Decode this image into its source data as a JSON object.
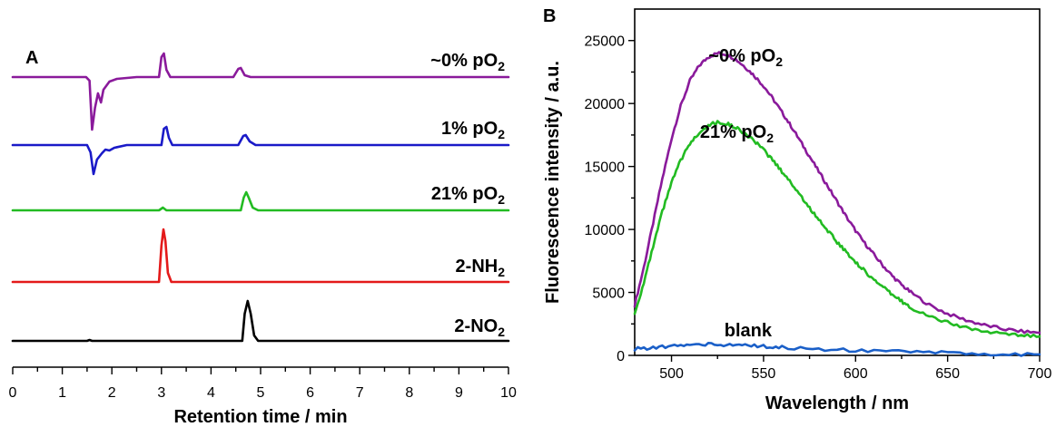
{
  "chart_data": [
    {
      "panel": "A",
      "type": "line",
      "xlabel": "Retention time / min",
      "ylabel": "",
      "xlim": [
        0,
        10
      ],
      "xticks": [
        0,
        1,
        2,
        3,
        4,
        5,
        6,
        7,
        8,
        9,
        10
      ],
      "grid": false,
      "series": [
        {
          "name": "~0% pO2",
          "label_main": "~0% pO",
          "label_sub": "2",
          "color": "#8a1a9b",
          "points": [
            [
              0,
              0
            ],
            [
              1.48,
              0
            ],
            [
              1.55,
              -4
            ],
            [
              1.6,
              -58
            ],
            [
              1.66,
              -34
            ],
            [
              1.72,
              -18
            ],
            [
              1.78,
              -28
            ],
            [
              1.83,
              -14
            ],
            [
              1.95,
              -5
            ],
            [
              2.1,
              -2
            ],
            [
              2.5,
              0
            ],
            [
              2.95,
              0
            ],
            [
              3.0,
              22
            ],
            [
              3.05,
              26
            ],
            [
              3.1,
              8
            ],
            [
              3.18,
              0
            ],
            [
              4.45,
              0
            ],
            [
              4.55,
              9
            ],
            [
              4.6,
              10
            ],
            [
              4.68,
              2
            ],
            [
              4.8,
              0
            ],
            [
              10,
              0
            ]
          ]
        },
        {
          "name": "1% pO2",
          "label_main": "1% pO",
          "label_sub": "2",
          "color": "#1a1ac8",
          "points": [
            [
              0,
              0
            ],
            [
              1.5,
              0
            ],
            [
              1.57,
              -8
            ],
            [
              1.63,
              -32
            ],
            [
              1.7,
              -16
            ],
            [
              1.8,
              -9
            ],
            [
              1.87,
              -5
            ],
            [
              1.95,
              -6
            ],
            [
              2.05,
              -3
            ],
            [
              2.3,
              0
            ],
            [
              3.0,
              0
            ],
            [
              3.05,
              18
            ],
            [
              3.1,
              20
            ],
            [
              3.15,
              8
            ],
            [
              3.22,
              0
            ],
            [
              4.55,
              0
            ],
            [
              4.65,
              10
            ],
            [
              4.7,
              11
            ],
            [
              4.78,
              4
            ],
            [
              4.9,
              0
            ],
            [
              10,
              0
            ]
          ]
        },
        {
          "name": "21% pO2",
          "label_main": "21% pO",
          "label_sub": "2",
          "color": "#22bb22",
          "points": [
            [
              0,
              0
            ],
            [
              2.95,
              0
            ],
            [
              3.03,
              3
            ],
            [
              3.1,
              0
            ],
            [
              4.6,
              0
            ],
            [
              4.66,
              14
            ],
            [
              4.71,
              20
            ],
            [
              4.76,
              14
            ],
            [
              4.84,
              3
            ],
            [
              4.95,
              0
            ],
            [
              10,
              0
            ]
          ]
        },
        {
          "name": "2-NH2",
          "label_main": "2-NH",
          "label_sub": "2",
          "color": "#e41a1a",
          "points": [
            [
              0,
              0
            ],
            [
              2.95,
              0
            ],
            [
              3.0,
              40
            ],
            [
              3.04,
              58
            ],
            [
              3.08,
              45
            ],
            [
              3.13,
              10
            ],
            [
              3.2,
              0
            ],
            [
              10,
              0
            ]
          ]
        },
        {
          "name": "2-NO2",
          "label_main": "2-NO",
          "label_sub": "2",
          "color": "#000000",
          "points": [
            [
              0,
              0
            ],
            [
              1.5,
              0
            ],
            [
              1.55,
              1
            ],
            [
              1.6,
              0
            ],
            [
              4.63,
              0
            ],
            [
              4.68,
              30
            ],
            [
              4.74,
              44
            ],
            [
              4.8,
              30
            ],
            [
              4.87,
              6
            ],
            [
              4.95,
              0
            ],
            [
              10,
              0
            ]
          ]
        }
      ]
    },
    {
      "panel": "B",
      "type": "line",
      "xlabel": "Wavelength / nm",
      "ylabel": "Fluorescence intensity / a.u.",
      "xlim": [
        480,
        700
      ],
      "ylim": [
        0,
        27500
      ],
      "xticks": [
        500,
        550,
        600,
        650,
        700
      ],
      "yticks": [
        0,
        5000,
        10000,
        15000,
        20000,
        25000
      ],
      "grid": false,
      "series": [
        {
          "name": "~0% pO2",
          "label_main": "~0% pO",
          "label_sub": "2",
          "color": "#8a1a9b",
          "x": [
            480,
            485,
            490,
            495,
            500,
            505,
            510,
            515,
            520,
            525,
            530,
            535,
            540,
            545,
            550,
            555,
            560,
            565,
            570,
            575,
            580,
            585,
            590,
            595,
            600,
            605,
            610,
            615,
            620,
            625,
            630,
            640,
            650,
            660,
            670,
            680,
            690,
            700
          ],
          "y": [
            4000,
            7000,
            10500,
            14000,
            17200,
            19800,
            21800,
            23000,
            23700,
            24000,
            23900,
            23500,
            22900,
            22200,
            21400,
            20400,
            19300,
            18200,
            17000,
            15800,
            14600,
            13400,
            12200,
            11000,
            9900,
            8900,
            8000,
            7100,
            6300,
            5600,
            5000,
            4000,
            3300,
            2800,
            2400,
            2100,
            1900,
            1800
          ]
        },
        {
          "name": "21% pO2",
          "label_main": "21% pO",
          "label_sub": "2",
          "color": "#22bb22",
          "x": [
            480,
            485,
            490,
            495,
            500,
            505,
            510,
            515,
            520,
            525,
            530,
            535,
            540,
            545,
            550,
            555,
            560,
            565,
            570,
            575,
            580,
            585,
            590,
            595,
            600,
            605,
            610,
            615,
            620,
            625,
            630,
            640,
            650,
            660,
            670,
            680,
            690,
            700
          ],
          "y": [
            3300,
            5800,
            8600,
            11400,
            13700,
            15500,
            16800,
            17700,
            18300,
            18500,
            18400,
            18100,
            17600,
            17000,
            16300,
            15500,
            14600,
            13700,
            12700,
            11700,
            10800,
            9900,
            9000,
            8200,
            7400,
            6700,
            6000,
            5400,
            4800,
            4300,
            3800,
            3100,
            2600,
            2200,
            1900,
            1700,
            1600,
            1500
          ]
        },
        {
          "name": "blank",
          "label_main": "blank",
          "label_sub": "",
          "color": "#1a5fc8",
          "x": [
            480,
            490,
            500,
            510,
            520,
            530,
            540,
            550,
            560,
            580,
            600,
            620,
            640,
            660,
            680,
            700
          ],
          "y": [
            500,
            620,
            720,
            820,
            880,
            860,
            800,
            720,
            640,
            500,
            390,
            300,
            220,
            160,
            110,
            80
          ]
        }
      ]
    }
  ]
}
